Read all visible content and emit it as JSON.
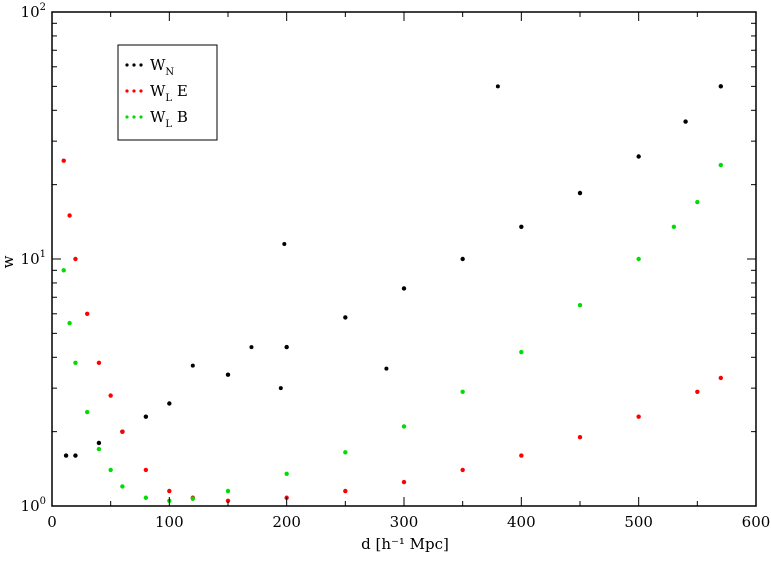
{
  "chart_data": {
    "type": "scatter",
    "title": "",
    "xlabel": "d [h⁻¹ Mpc]",
    "ylabel": "w",
    "xlim": [
      0,
      600
    ],
    "ylim": [
      1,
      100
    ],
    "yscale": "log",
    "grid": false,
    "legend_placement": "top-left",
    "x_ticks": [
      "0",
      "100",
      "200",
      "300",
      "400",
      "500",
      "600"
    ],
    "y_ticks": [
      {
        "value": 1,
        "base": "10",
        "exp": "0"
      },
      {
        "value": 10,
        "base": "10",
        "exp": "1"
      },
      {
        "value": 100,
        "base": "10",
        "exp": "2"
      }
    ],
    "series": [
      {
        "name": "W_N",
        "legend_main": "W",
        "legend_sub": "N",
        "legend_suffix": "",
        "color": "#000000",
        "x": [
          12,
          20,
          40,
          60,
          80,
          100,
          150,
          200,
          250,
          300,
          350,
          400,
          450,
          500,
          540,
          570
        ],
        "y": [
          1.6,
          1.6,
          1.8,
          2.0,
          2.3,
          2.6,
          3.4,
          4.4,
          5.8,
          7.6,
          10,
          13.5,
          18.5,
          26,
          36,
          50
        ]
      },
      {
        "name": "W_L E",
        "legend_main": "W",
        "legend_sub": "L",
        "legend_suffix": "E",
        "color": "#ff0000",
        "x": [
          10,
          15,
          20,
          30,
          40,
          50,
          60,
          80,
          100,
          120,
          150,
          200,
          250,
          300,
          350,
          400,
          450,
          500,
          550,
          570
        ],
        "y": [
          25,
          15,
          10,
          6,
          3.8,
          2.8,
          2.0,
          1.4,
          1.15,
          1.08,
          1.05,
          1.08,
          1.15,
          1.25,
          1.4,
          1.6,
          1.9,
          2.3,
          2.9,
          3.3
        ]
      },
      {
        "name": "W_L B",
        "legend_main": "W",
        "legend_sub": "L",
        "legend_suffix": "B",
        "color": "#00dd00",
        "x": [
          10,
          15,
          20,
          30,
          40,
          50,
          60,
          80,
          100,
          120,
          150,
          200,
          250,
          300,
          350,
          400,
          450,
          500,
          530,
          550,
          570
        ],
        "y": [
          9,
          5.5,
          3.8,
          2.4,
          1.7,
          1.4,
          1.2,
          1.08,
          1.05,
          1.07,
          1.15,
          1.35,
          1.65,
          2.1,
          2.9,
          4.2,
          6.5,
          10,
          13.5,
          17,
          24
        ]
      }
    ],
    "outliers": [
      {
        "series": "W_N",
        "x": 380,
        "y": 50
      },
      {
        "series": "W_N",
        "x": 198,
        "y": 11.5
      },
      {
        "series": "W_N",
        "x": 170,
        "y": 4.4
      },
      {
        "series": "W_N",
        "x": 195,
        "y": 3.0
      },
      {
        "series": "W_N",
        "x": 285,
        "y": 3.6
      },
      {
        "series": "W_N",
        "x": 120,
        "y": 3.7
      }
    ]
  }
}
